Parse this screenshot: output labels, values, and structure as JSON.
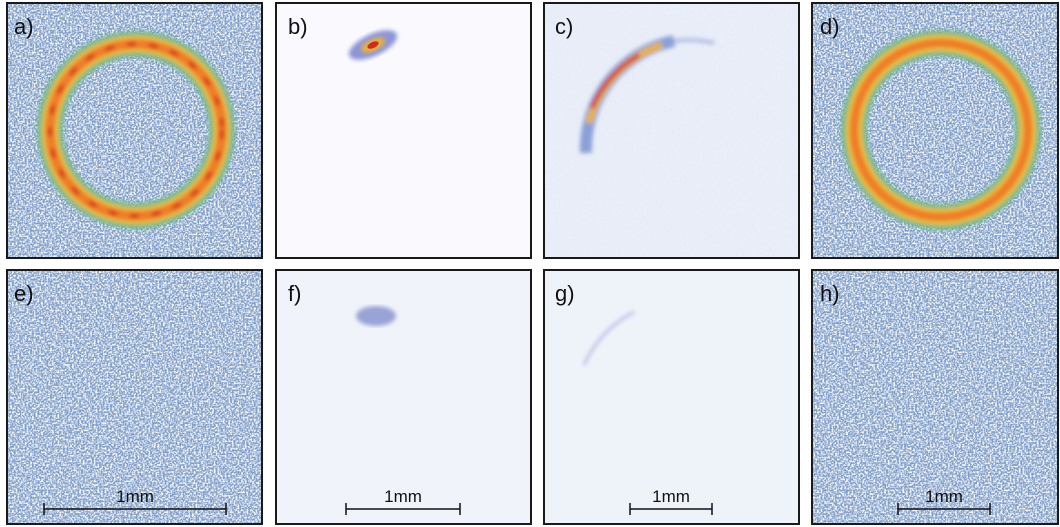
{
  "panels": [
    {
      "label": "a)"
    },
    {
      "label": "b)"
    },
    {
      "label": "c)"
    },
    {
      "label": "d)"
    },
    {
      "label": "e)",
      "scale_bar": "1mm"
    },
    {
      "label": "f)",
      "scale_bar": "1mm"
    },
    {
      "label": "g)",
      "scale_bar": "1mm"
    },
    {
      "label": "h)",
      "scale_bar": "1mm"
    }
  ]
}
